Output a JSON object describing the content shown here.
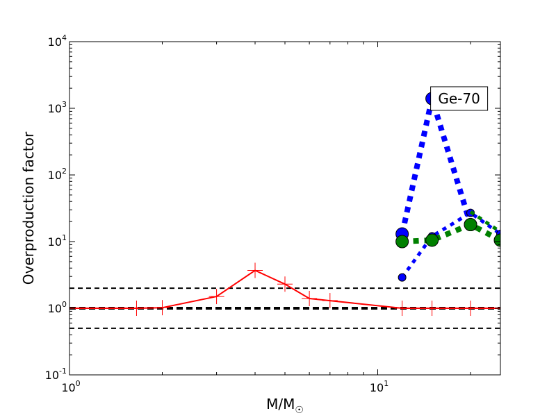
{
  "chart_data": {
    "type": "line",
    "x_scale": "log",
    "y_scale": "log",
    "xlim": [
      1,
      25
    ],
    "ylim": [
      0.1,
      10000
    ],
    "x_ticks": [
      {
        "value": 1,
        "base": "10",
        "exp": "0"
      },
      {
        "value": 10,
        "base": "10",
        "exp": "1"
      }
    ],
    "y_ticks": [
      {
        "value": 0.1,
        "base": "10",
        "exp": "-1"
      },
      {
        "value": 1,
        "base": "10",
        "exp": "0"
      },
      {
        "value": 10,
        "base": "10",
        "exp": "1"
      },
      {
        "value": 100,
        "base": "10",
        "exp": "2"
      },
      {
        "value": 1000,
        "base": "10",
        "exp": "3"
      },
      {
        "value": 10000,
        "base": "10",
        "exp": "4"
      }
    ],
    "xlabel": "M/M",
    "xlabel_sub": "☉",
    "ylabel": "Overproduction factor",
    "annotation": "Ge-70",
    "annotation_anchor": {
      "x": 15,
      "y": 1400
    },
    "reference_lines": [
      {
        "y": 2,
        "color": "#000000",
        "style": "dashed-thin"
      },
      {
        "y": 0.5,
        "color": "#000000",
        "style": "dashed-thin"
      },
      {
        "y": 1,
        "color": "#000000",
        "style": "dashed-thick"
      }
    ],
    "series": [
      {
        "color": "#ff0000",
        "style": "solid",
        "marker": "plus",
        "x": [
          1.0,
          1.65,
          2.0,
          3.0,
          4.0,
          5.0,
          6.0,
          7.0,
          12.0,
          15.0,
          20.0,
          25.0
        ],
        "y": [
          1.0,
          1.0,
          1.02,
          1.5,
          3.7,
          2.3,
          1.4,
          1.3,
          1.0,
          1.0,
          1.0,
          1.0
        ]
      },
      {
        "color": "#0000ff",
        "style": "dotted-thick",
        "marker": "circle-large",
        "x": [
          12,
          15,
          20
        ],
        "y": [
          13,
          1400,
          18
        ]
      },
      {
        "color": "#0000ff",
        "style": "dotted-medium",
        "marker": "circle-small",
        "x": [
          12,
          15,
          20,
          25
        ],
        "y": [
          2.9,
          12,
          27,
          13
        ]
      },
      {
        "color": "#008000",
        "style": "dotted-thick",
        "marker": "circle-large",
        "x": [
          12,
          15,
          20,
          25
        ],
        "y": [
          10,
          10.5,
          18,
          10.5
        ]
      },
      {
        "color": "#008000",
        "style": "dotted-medium",
        "marker": "none",
        "x": [
          20,
          25
        ],
        "y": [
          28,
          14
        ]
      }
    ]
  }
}
